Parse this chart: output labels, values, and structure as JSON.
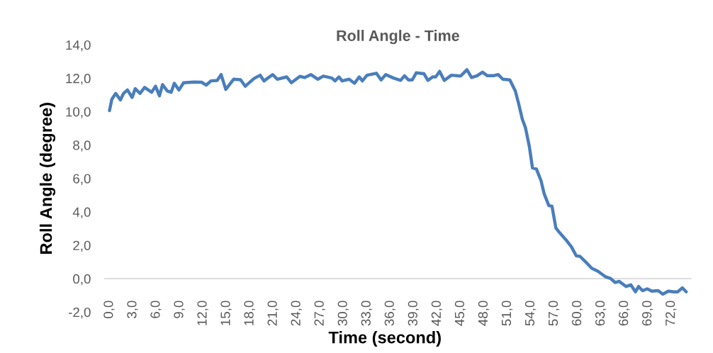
{
  "chart_data": {
    "type": "line",
    "title": "Roll Angle - Time",
    "xlabel": "Time (second)",
    "ylabel": "Roll Angle (degree)",
    "grid": false,
    "marker": "none",
    "line_style": "solid",
    "xlim": [
      -0.6,
      74.5
    ],
    "ylim": [
      -2,
      14
    ],
    "xticks": [
      {
        "value": 0,
        "label": "0,0"
      },
      {
        "value": 3,
        "label": "3,0"
      },
      {
        "value": 6,
        "label": "6,0"
      },
      {
        "value": 9,
        "label": "9,0"
      },
      {
        "value": 12,
        "label": "12,0"
      },
      {
        "value": 15,
        "label": "15,0"
      },
      {
        "value": 18,
        "label": "18,0"
      },
      {
        "value": 21,
        "label": "21,0"
      },
      {
        "value": 24,
        "label": "24,0"
      },
      {
        "value": 27,
        "label": "27,0"
      },
      {
        "value": 30,
        "label": "30,0"
      },
      {
        "value": 33,
        "label": "33,0"
      },
      {
        "value": 36,
        "label": "36,0"
      },
      {
        "value": 39,
        "label": "39,0"
      },
      {
        "value": 42,
        "label": "42,0"
      },
      {
        "value": 45,
        "label": "45,0"
      },
      {
        "value": 48,
        "label": "48,0"
      },
      {
        "value": 51,
        "label": "51,0"
      },
      {
        "value": 54,
        "label": "54,0"
      },
      {
        "value": 57,
        "label": "57,0"
      },
      {
        "value": 60,
        "label": "60,0"
      },
      {
        "value": 63,
        "label": "63,0"
      },
      {
        "value": 66,
        "label": "66,0"
      },
      {
        "value": 69,
        "label": "69,0"
      },
      {
        "value": 72,
        "label": "72,0"
      }
    ],
    "yticks": [
      {
        "value": -2,
        "label": "-2,0"
      },
      {
        "value": 0,
        "label": "0,0"
      },
      {
        "value": 2,
        "label": "2,0"
      },
      {
        "value": 4,
        "label": "4,0"
      },
      {
        "value": 6,
        "label": "6,0"
      },
      {
        "value": 8,
        "label": "8,0"
      },
      {
        "value": 10,
        "label": "10,0"
      },
      {
        "value": 12,
        "label": "12,0"
      },
      {
        "value": 14,
        "label": "14,0"
      }
    ],
    "series": [
      {
        "color": "#4a7ebb",
        "x": [
          0,
          0.3,
          0.8,
          1.4,
          1.8,
          2.3,
          2.9,
          3.3,
          3.9,
          4.5,
          5.4,
          5.9,
          6.4,
          6.8,
          7.4,
          7.9,
          8.3,
          8.9,
          9.5,
          10.8,
          11.8,
          12.4,
          13.0,
          13.8,
          14.3,
          14.9,
          15.9,
          16.8,
          17.4,
          18.5,
          19.3,
          19.8,
          20.9,
          21.5,
          22.7,
          23.3,
          24.4,
          25.0,
          25.8,
          26.7,
          27.4,
          28.5,
          28.9,
          29.4,
          29.8,
          30.7,
          31.4,
          32.0,
          32.4,
          33.0,
          34.2,
          34.8,
          35.4,
          36.4,
          37.3,
          37.8,
          38.3,
          38.8,
          39.3,
          40.3,
          40.8,
          41.4,
          41.8,
          42.3,
          42.9,
          43.8,
          45.0,
          45.8,
          46.4,
          47.1,
          47.8,
          48.4,
          49.2,
          49.8,
          50.4,
          51.3,
          52.0,
          52.4,
          52.9,
          53.3,
          53.8,
          54.2,
          54.7,
          55.3,
          55.7,
          56.3,
          56.7,
          57.2,
          57.7,
          58.5,
          59.2,
          59.8,
          60.3,
          61.0,
          61.8,
          62.6,
          63.5,
          64.2,
          64.8,
          65.3,
          66.2,
          66.8,
          67.4,
          67.8,
          68.3,
          68.9,
          69.5,
          70.3,
          70.9,
          71.6,
          72.3,
          72.8,
          73.4,
          73.9
        ],
        "values": [
          10.06,
          10.74,
          11.09,
          10.7,
          11.09,
          11.3,
          10.85,
          11.38,
          11.09,
          11.45,
          11.16,
          11.52,
          10.95,
          11.62,
          11.24,
          11.16,
          11.7,
          11.3,
          11.73,
          11.77,
          11.76,
          11.59,
          11.84,
          11.87,
          12.22,
          11.33,
          11.94,
          11.91,
          11.52,
          11.98,
          12.18,
          11.84,
          12.22,
          11.94,
          12.08,
          11.73,
          12.11,
          12.04,
          12.22,
          11.94,
          12.13,
          12.01,
          11.84,
          12.08,
          11.84,
          11.94,
          11.7,
          12.08,
          11.84,
          12.18,
          12.3,
          11.9,
          12.22,
          12.01,
          11.87,
          12.15,
          11.9,
          11.9,
          12.32,
          12.27,
          11.87,
          12.08,
          12.08,
          12.41,
          11.87,
          12.18,
          12.13,
          12.51,
          12.04,
          12.15,
          12.36,
          12.15,
          12.15,
          12.22,
          11.94,
          11.9,
          11.24,
          10.53,
          9.54,
          9.04,
          7.91,
          6.63,
          6.57,
          5.86,
          5.08,
          4.37,
          4.34,
          3.03,
          2.74,
          2.32,
          1.9,
          1.37,
          1.33,
          1.01,
          0.62,
          0.44,
          0.13,
          0.01,
          -0.23,
          -0.16,
          -0.47,
          -0.37,
          -0.79,
          -0.47,
          -0.72,
          -0.61,
          -0.75,
          -0.72,
          -0.93,
          -0.75,
          -0.79,
          -0.79,
          -0.55,
          -0.79
        ]
      }
    ]
  }
}
